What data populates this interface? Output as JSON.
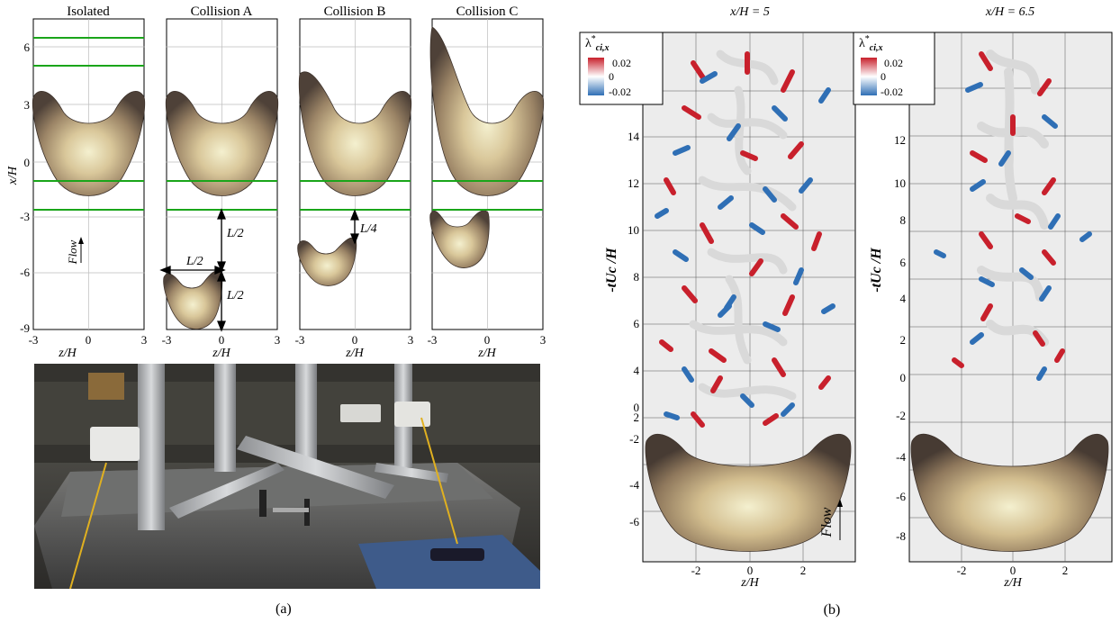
{
  "panel_a": {
    "titles": [
      "Isolated",
      "Collision A",
      "Collision B",
      "Collision C"
    ],
    "y_label": "x/H",
    "x_label": "z/H",
    "y_ticks": [
      "6",
      "3",
      "0",
      "-3",
      "-6",
      "-9"
    ],
    "x_ticks_first": [
      "-3",
      "0",
      "3"
    ],
    "x_ticks_rest": [
      "-3",
      "0",
      "3"
    ],
    "flow_label": "Flow",
    "annotations": {
      "a_vertical_1": "L/2",
      "a_horizontal": "L/2",
      "a_vertical_2": "L/2",
      "b_vertical": "L/4"
    },
    "caption": "(a)",
    "colors": {
      "laser_sheet": "#1aa51a",
      "body_dark": "#5b4b3e",
      "body_light": "#f3ecc6"
    }
  },
  "panel_b": {
    "titles": [
      "x/H = 5",
      "x/H = 6.5"
    ],
    "legend": {
      "title": "λ*ci,x",
      "title_main": "λ",
      "title_sup": "*",
      "title_sub": "ci,x",
      "max": "0.02",
      "mid": "0",
      "min": "-0.02"
    },
    "left_y_label": "-tUc /H",
    "left_y_ticks": [
      "14",
      "12",
      "10",
      "8",
      "6",
      "4",
      "2",
      "0",
      "-2",
      "-4",
      "-6"
    ],
    "right_y_ticks": [
      "12",
      "10",
      "8",
      "6",
      "4",
      "2",
      "0",
      "-2",
      "-4",
      "-6",
      "-8"
    ],
    "x_label": "z/H",
    "x_ticks": [
      "-2",
      "0",
      "2"
    ],
    "flow_label": "Flow",
    "caption": "(b)",
    "colors": {
      "positive": "#c8202c",
      "negative": "#2f6fb5",
      "neutral": "#d9d9d9",
      "background": "#ececec"
    }
  }
}
